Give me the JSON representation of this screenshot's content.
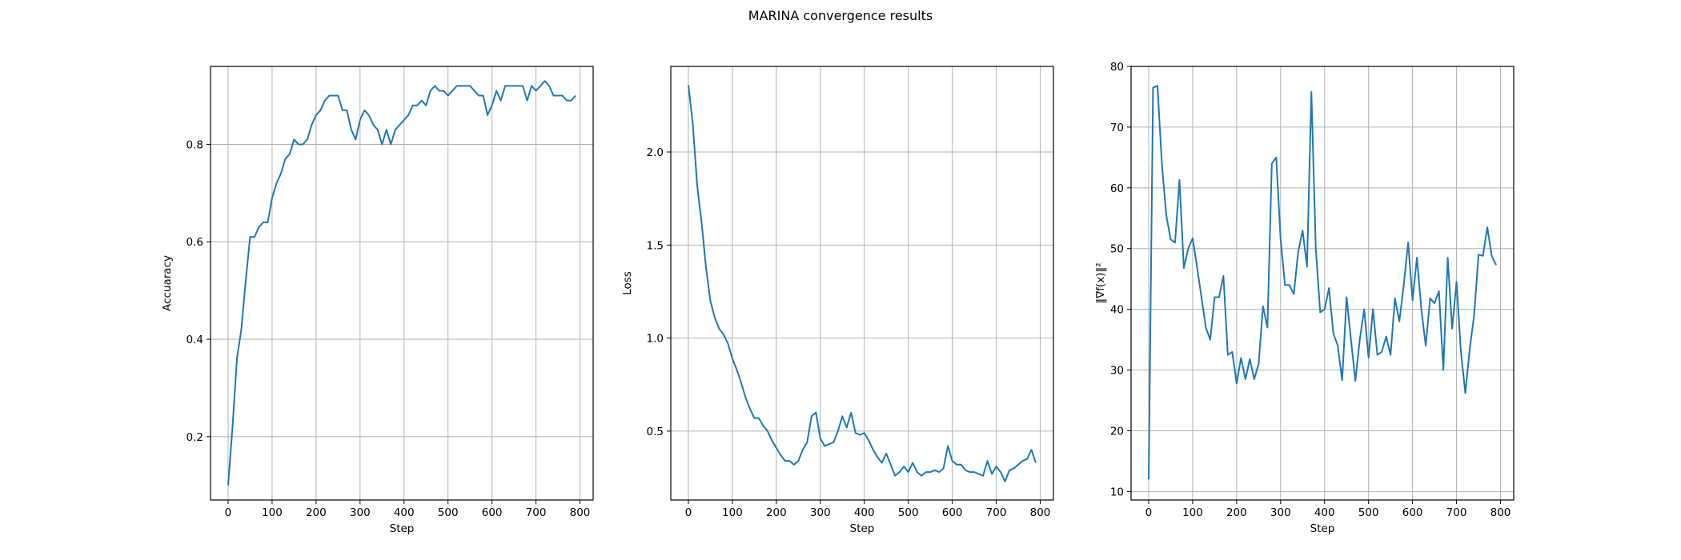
{
  "figure": {
    "title": "MARINA convergence results"
  },
  "chart_data": [
    {
      "type": "line",
      "xlabel": "Step",
      "ylabel": "Accuaracy",
      "xlim": [
        -40,
        830
      ],
      "ylim": [
        0.07,
        0.96
      ],
      "xticks": [
        0,
        100,
        200,
        300,
        400,
        500,
        600,
        700,
        800
      ],
      "yticks": [
        0.2,
        0.4,
        0.6,
        0.8
      ],
      "ytick_labels": [
        "0.2",
        "0.4",
        "0.6",
        "0.8"
      ],
      "grid": true,
      "color": "#1f77b4",
      "x": [
        0,
        10,
        20,
        30,
        40,
        50,
        60,
        70,
        80,
        90,
        100,
        110,
        120,
        130,
        140,
        150,
        160,
        170,
        180,
        190,
        200,
        210,
        220,
        230,
        240,
        250,
        260,
        270,
        280,
        290,
        300,
        310,
        320,
        330,
        340,
        350,
        360,
        370,
        380,
        390,
        400,
        410,
        420,
        430,
        440,
        450,
        460,
        470,
        480,
        490,
        500,
        510,
        520,
        530,
        540,
        550,
        560,
        570,
        580,
        590,
        600,
        610,
        620,
        630,
        640,
        650,
        660,
        670,
        680,
        690,
        700,
        710,
        720,
        730,
        740,
        750,
        760,
        770,
        780,
        790
      ],
      "values": [
        0.1,
        0.22,
        0.36,
        0.42,
        0.52,
        0.61,
        0.61,
        0.63,
        0.64,
        0.64,
        0.69,
        0.72,
        0.74,
        0.77,
        0.78,
        0.81,
        0.8,
        0.8,
        0.81,
        0.84,
        0.86,
        0.87,
        0.89,
        0.9,
        0.9,
        0.9,
        0.87,
        0.87,
        0.83,
        0.81,
        0.85,
        0.87,
        0.86,
        0.84,
        0.83,
        0.8,
        0.83,
        0.8,
        0.83,
        0.84,
        0.85,
        0.86,
        0.88,
        0.88,
        0.89,
        0.88,
        0.91,
        0.92,
        0.91,
        0.91,
        0.9,
        0.91,
        0.92,
        0.92,
        0.92,
        0.92,
        0.91,
        0.9,
        0.9,
        0.86,
        0.88,
        0.91,
        0.89,
        0.92,
        0.92,
        0.92,
        0.92,
        0.92,
        0.89,
        0.92,
        0.91,
        0.92,
        0.93,
        0.92,
        0.9,
        0.9,
        0.9,
        0.89,
        0.89,
        0.9
      ]
    },
    {
      "type": "line",
      "xlabel": "Step",
      "ylabel": "Loss",
      "xlim": [
        -40,
        830
      ],
      "ylim": [
        0.13,
        2.46
      ],
      "xticks": [
        0,
        100,
        200,
        300,
        400,
        500,
        600,
        700,
        800
      ],
      "yticks": [
        0.5,
        1.0,
        1.5,
        2.0
      ],
      "ytick_labels": [
        "0.5",
        "1.0",
        "1.5",
        "2.0"
      ],
      "grid": true,
      "color": "#1f77b4",
      "x": [
        0,
        10,
        20,
        30,
        40,
        50,
        60,
        70,
        80,
        90,
        100,
        110,
        120,
        130,
        140,
        150,
        160,
        170,
        180,
        190,
        200,
        210,
        220,
        230,
        240,
        250,
        260,
        270,
        280,
        290,
        300,
        310,
        320,
        330,
        340,
        350,
        360,
        370,
        380,
        390,
        400,
        410,
        420,
        430,
        440,
        450,
        460,
        470,
        480,
        490,
        500,
        510,
        520,
        530,
        540,
        550,
        560,
        570,
        580,
        590,
        600,
        610,
        620,
        630,
        640,
        650,
        660,
        670,
        680,
        690,
        700,
        710,
        720,
        730,
        740,
        750,
        760,
        770,
        780,
        790
      ],
      "values": [
        2.36,
        2.15,
        1.82,
        1.62,
        1.38,
        1.2,
        1.11,
        1.05,
        1.02,
        0.97,
        0.89,
        0.83,
        0.76,
        0.68,
        0.62,
        0.57,
        0.57,
        0.53,
        0.5,
        0.45,
        0.41,
        0.37,
        0.34,
        0.34,
        0.32,
        0.34,
        0.4,
        0.44,
        0.58,
        0.6,
        0.46,
        0.42,
        0.43,
        0.44,
        0.5,
        0.58,
        0.52,
        0.6,
        0.49,
        0.48,
        0.49,
        0.45,
        0.4,
        0.36,
        0.33,
        0.38,
        0.32,
        0.26,
        0.28,
        0.31,
        0.28,
        0.33,
        0.28,
        0.26,
        0.28,
        0.28,
        0.29,
        0.28,
        0.3,
        0.42,
        0.34,
        0.32,
        0.32,
        0.29,
        0.28,
        0.28,
        0.27,
        0.26,
        0.34,
        0.27,
        0.31,
        0.28,
        0.23,
        0.29,
        0.3,
        0.32,
        0.34,
        0.35,
        0.4,
        0.33
      ]
    },
    {
      "type": "line",
      "xlabel": "Step",
      "ylabel": "‖∇f(x)‖²",
      "xlim": [
        -40,
        830
      ],
      "ylim": [
        8.6,
        80
      ],
      "xticks": [
        0,
        100,
        200,
        300,
        400,
        500,
        600,
        700,
        800
      ],
      "yticks": [
        10,
        20,
        30,
        40,
        50,
        60,
        70,
        80
      ],
      "ytick_labels": [
        "10",
        "20",
        "30",
        "40",
        "50",
        "60",
        "70",
        "80"
      ],
      "grid": true,
      "color": "#1f77b4",
      "x": [
        0,
        10,
        20,
        30,
        40,
        50,
        60,
        70,
        80,
        90,
        100,
        110,
        120,
        130,
        140,
        150,
        160,
        170,
        180,
        190,
        200,
        210,
        220,
        230,
        240,
        250,
        260,
        270,
        280,
        290,
        300,
        310,
        320,
        330,
        340,
        350,
        360,
        370,
        380,
        390,
        400,
        410,
        420,
        430,
        440,
        450,
        460,
        470,
        480,
        490,
        500,
        510,
        520,
        530,
        540,
        550,
        560,
        570,
        580,
        590,
        600,
        610,
        620,
        630,
        640,
        650,
        660,
        670,
        680,
        690,
        700,
        710,
        720,
        730,
        740,
        750,
        760,
        770,
        780,
        790
      ],
      "values": [
        12,
        76.5,
        76.8,
        64,
        55.5,
        51.5,
        51,
        61.3,
        46.8,
        50,
        51.7,
        47,
        42,
        37,
        35,
        42,
        42,
        45.5,
        32.5,
        33,
        27.8,
        32,
        28.5,
        31.8,
        28.5,
        31,
        40.5,
        37,
        64,
        65,
        51.5,
        44,
        44,
        42.5,
        49.5,
        53,
        47,
        75.8,
        50,
        39.5,
        40,
        43.5,
        36,
        34,
        28.3,
        42,
        35,
        28.2,
        35,
        40,
        32,
        40,
        32.5,
        33,
        35.5,
        32.5,
        41.8,
        38,
        44,
        51,
        41.5,
        48.5,
        40,
        34,
        41.8,
        41,
        43,
        30,
        48.5,
        36.8,
        44.5,
        33,
        26.2,
        33.5,
        39,
        49,
        48.8,
        53.5,
        48.8,
        47.3
      ]
    }
  ]
}
